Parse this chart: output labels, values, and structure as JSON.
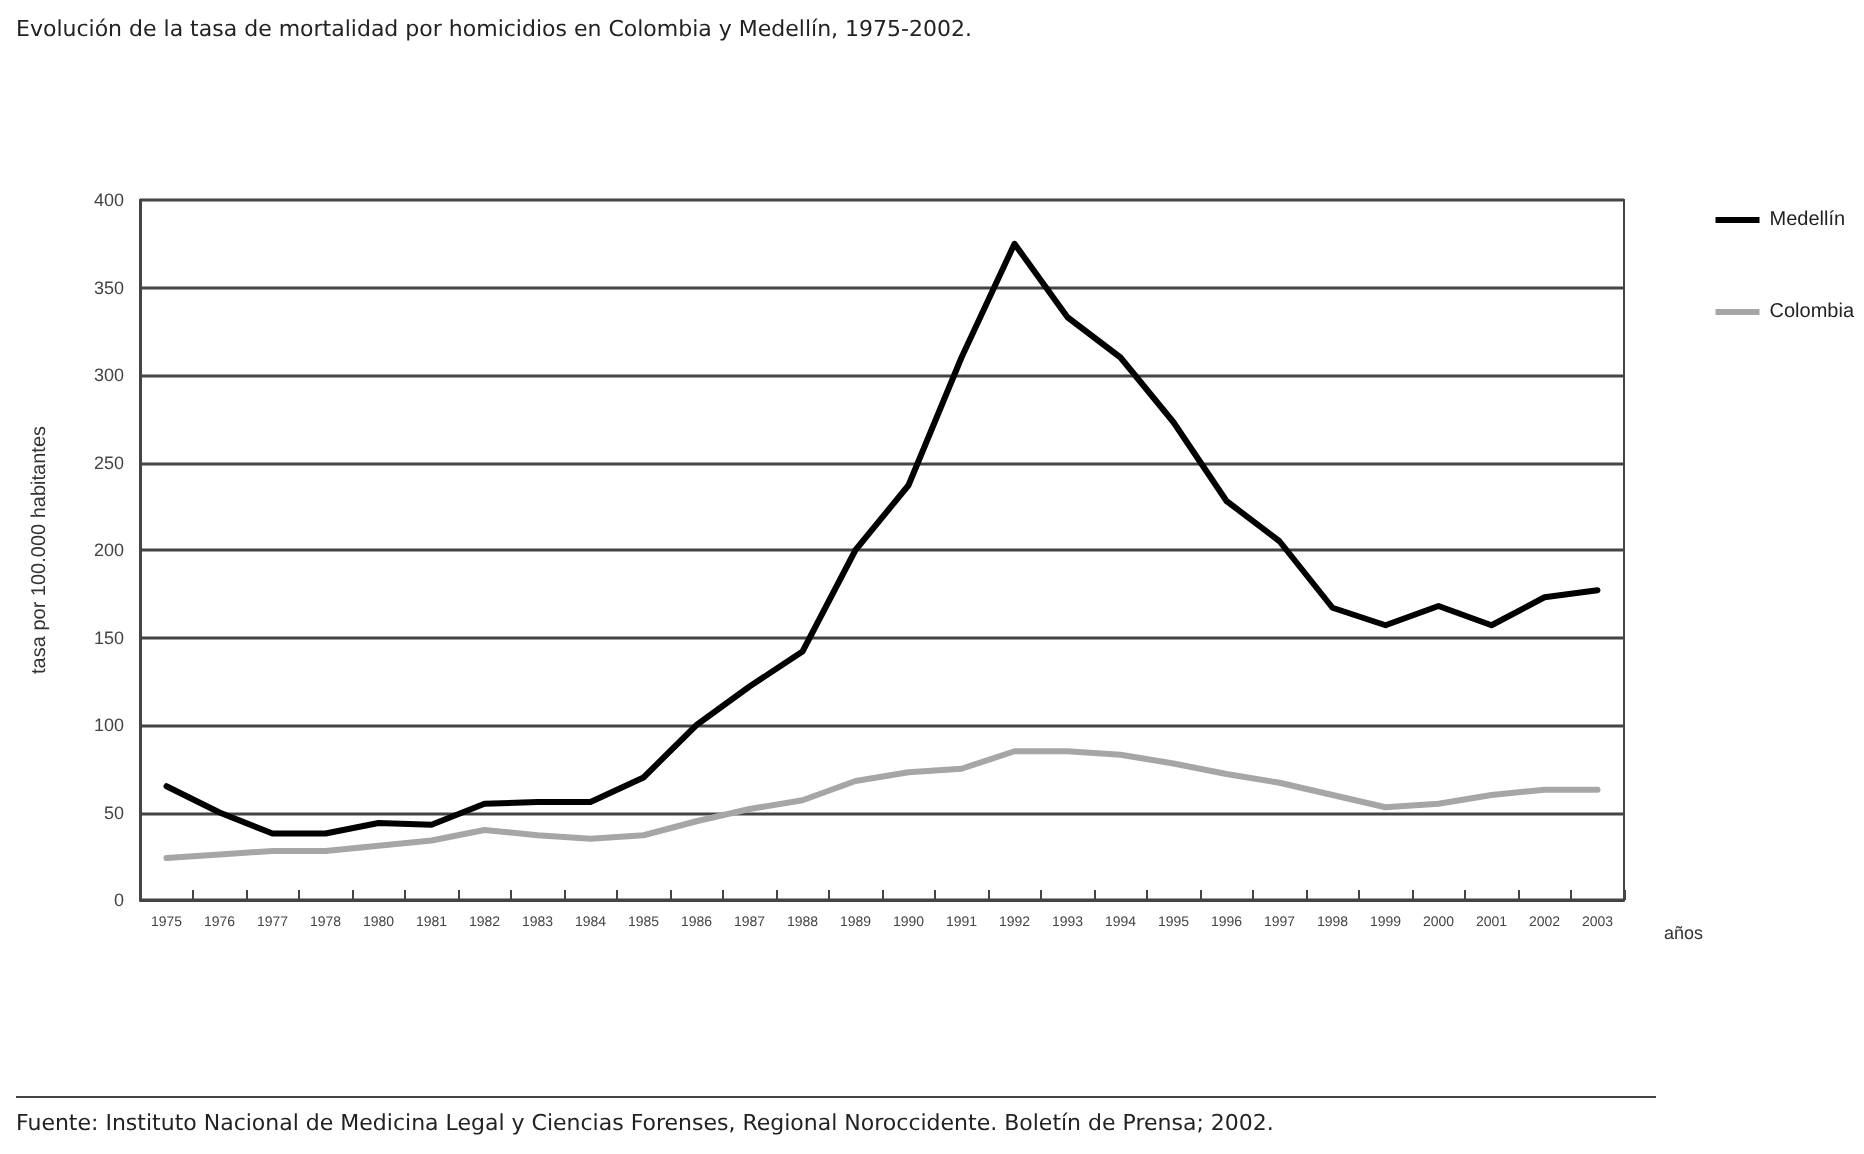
{
  "chart_data": {
    "type": "line",
    "title": "Evolución de la tasa de mortalidad por homicidios en Colombia y Medellín, 1975-2002.",
    "xlabel": "años",
    "ylabel": "tasa por 100.000 habitantes",
    "annotations": [
      "Fuente: Instituto Nacional de Medicina Legal y Ciencias Forenses, Regional Noroccidente. Boletín de Prensa; 2002."
    ],
    "categories": [
      "1975",
      "1976",
      "1977",
      "1978",
      "1980",
      "1981",
      "1982",
      "1983",
      "1984",
      "1985",
      "1986",
      "1987",
      "1988",
      "1989",
      "1990",
      "1991",
      "1992",
      "1993",
      "1994",
      "1995",
      "1996",
      "1997",
      "1998",
      "1999",
      "2000",
      "2001",
      "2002",
      "2003"
    ],
    "series": [
      {
        "name": "Medellín",
        "color": "#000000",
        "values": [
          65,
          50,
          38,
          38,
          44,
          43,
          55,
          56,
          56,
          70,
          100,
          122,
          142,
          200,
          237,
          310,
          375,
          333,
          310,
          273,
          228,
          205,
          167,
          157,
          168,
          157,
          173,
          177
        ]
      },
      {
        "name": "Colombia",
        "color": "#a6a6a6",
        "values": [
          24,
          26,
          28,
          28,
          31,
          34,
          40,
          37,
          35,
          37,
          45,
          52,
          57,
          68,
          73,
          75,
          85,
          85,
          83,
          78,
          72,
          67,
          60,
          53,
          55,
          60,
          63,
          63
        ]
      }
    ],
    "ylim": [
      0,
      400
    ],
    "yticks": [
      0,
      50,
      100,
      150,
      200,
      250,
      300,
      350,
      400
    ],
    "grid": "y",
    "legend": "top right",
    "marker": "none",
    "line_style": "solid"
  }
}
